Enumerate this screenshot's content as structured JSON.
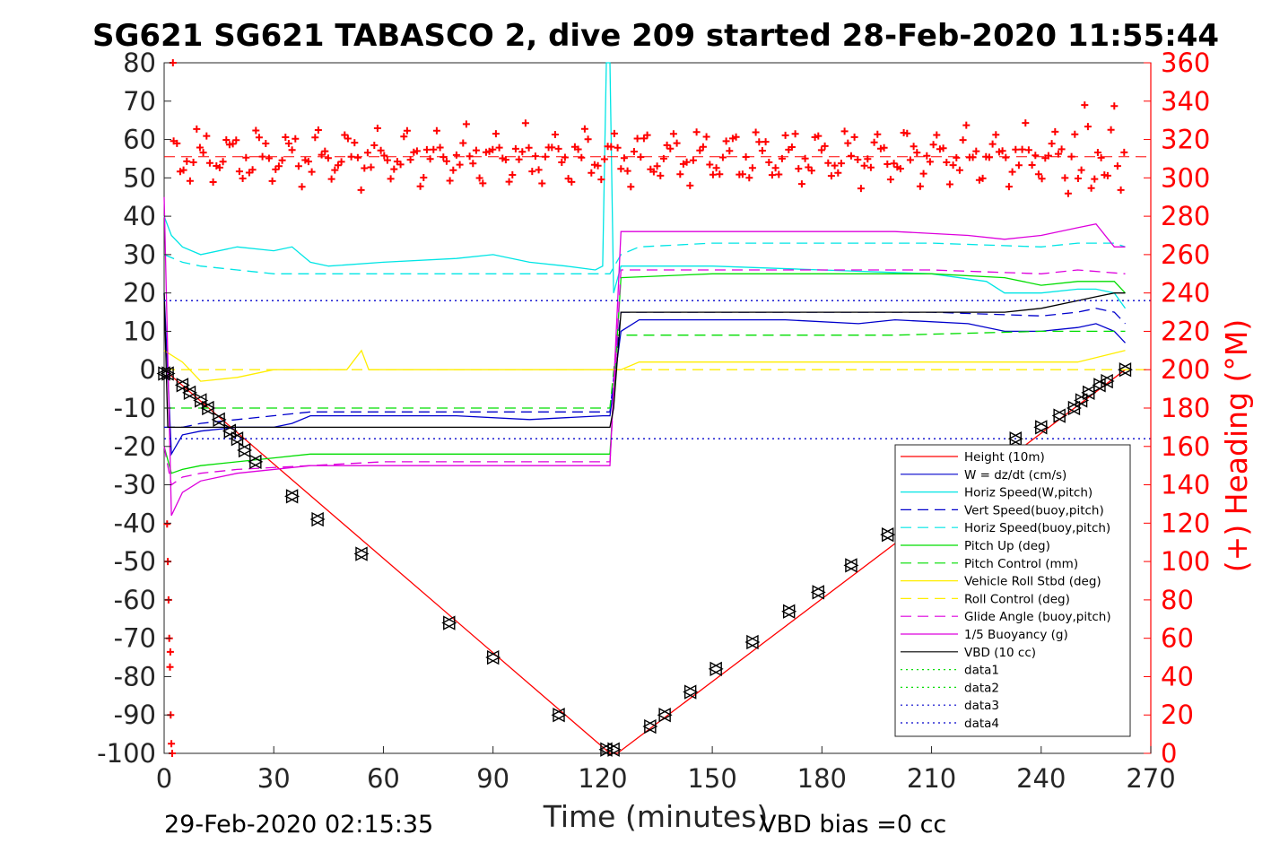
{
  "chart_data": {
    "type": "line",
    "title": "SG621 SG621 TABASCO 2, dive 209 started 28-Feb-2020 11:55:44",
    "xlabel": "Time (minutes)",
    "ylabel_left": "",
    "ylabel_right": "(+) Heading (°M)",
    "xlim": [
      0,
      270
    ],
    "ylim_left": [
      -100,
      80
    ],
    "ylim_right": [
      0,
      360
    ],
    "x_ticks": [
      "0",
      "30",
      "60",
      "90",
      "120",
      "150",
      "180",
      "210",
      "240",
      "270"
    ],
    "y_ticks_left": [
      "80",
      "70",
      "60",
      "50",
      "40",
      "30",
      "20",
      "10",
      "0",
      "-10",
      "-20",
      "-30",
      "-40",
      "-50",
      "-60",
      "-70",
      "-80",
      "-90",
      "-100"
    ],
    "y_ticks_right": [
      "360",
      "340",
      "320",
      "300",
      "280",
      "260",
      "240",
      "220",
      "200",
      "180",
      "160",
      "140",
      "120",
      "100",
      "80",
      "60",
      "40",
      "20",
      "0"
    ],
    "grid": false,
    "legend_position": "bottom-right",
    "footer_left": "29-Feb-2020 02:15:35",
    "footer_right": "VBD bias =0 cc",
    "heading_mean": 311,
    "series": [
      {
        "name": "Height (10m)",
        "color": "#ff0000",
        "style": "solid",
        "x": [
          0,
          122,
          124,
          263
        ],
        "y": [
          0,
          -100,
          -100,
          0
        ]
      },
      {
        "name": "W = dz/dt (cm/s)",
        "color": "#0000cc",
        "style": "solid",
        "x": [
          0,
          2,
          5,
          10,
          20,
          30,
          35,
          40,
          50,
          60,
          80,
          100,
          120,
          122,
          125,
          130,
          150,
          170,
          190,
          200,
          220,
          230,
          240,
          250,
          255,
          260,
          263
        ],
        "y": [
          20,
          -22,
          -17,
          -16,
          -15,
          -15,
          -14,
          -12,
          -12,
          -12,
          -12,
          -13,
          -12,
          -12,
          10,
          13,
          13,
          13,
          12,
          13,
          12,
          10,
          10,
          11,
          12,
          10,
          7
        ]
      },
      {
        "name": "Horiz Speed(W,pitch)",
        "color": "#00e5e5",
        "style": "solid",
        "x": [
          0,
          2,
          5,
          10,
          20,
          30,
          35,
          40,
          45,
          60,
          80,
          90,
          100,
          110,
          118,
          120,
          121,
          122,
          123,
          125,
          130,
          150,
          180,
          210,
          225,
          230,
          240,
          250,
          255,
          260,
          263
        ],
        "y": [
          40,
          35,
          32,
          30,
          32,
          31,
          32,
          28,
          27,
          28,
          29,
          30,
          28,
          27,
          26,
          27,
          80,
          80,
          20,
          27,
          27,
          27,
          26,
          25,
          23,
          20,
          20,
          21,
          21,
          20,
          16
        ]
      },
      {
        "name": "Vert Speed(buoy,pitch)",
        "color": "#0000cc",
        "style": "dashed",
        "x": [
          0,
          5,
          10,
          20,
          40,
          60,
          90,
          120,
          122,
          125,
          150,
          180,
          210,
          240,
          250,
          255,
          260,
          263
        ],
        "y": [
          -15,
          -15,
          -14,
          -13,
          -11,
          -11,
          -11,
          -11,
          -11,
          15,
          15,
          15,
          15,
          14,
          15,
          16,
          15,
          12
        ]
      },
      {
        "name": "Horiz Speed(buoy,pitch)",
        "color": "#00e5e5",
        "style": "dashed",
        "x": [
          0,
          5,
          10,
          20,
          30,
          40,
          60,
          90,
          120,
          122,
          125,
          130,
          150,
          180,
          210,
          240,
          250,
          260,
          263
        ],
        "y": [
          30,
          28,
          27,
          26,
          25,
          25,
          25,
          25,
          25,
          25,
          30,
          32,
          33,
          33,
          33,
          32,
          33,
          33,
          32
        ]
      },
      {
        "name": "Pitch Up (deg)",
        "color": "#00dd00",
        "style": "solid",
        "x": [
          0,
          2,
          5,
          10,
          20,
          30,
          40,
          60,
          90,
          120,
          122,
          125,
          150,
          180,
          210,
          230,
          240,
          250,
          260,
          263
        ],
        "y": [
          -20,
          -27,
          -26,
          -25,
          -24,
          -23,
          -22,
          -22,
          -22,
          -22,
          -22,
          24,
          25,
          25,
          25,
          24,
          22,
          23,
          23,
          20
        ]
      },
      {
        "name": "Pitch Control (mm)",
        "color": "#00dd00",
        "style": "dashed",
        "x": [
          0,
          5,
          60,
          120,
          122,
          124,
          150,
          200,
          240,
          263
        ],
        "y": [
          -10,
          -10,
          -10,
          -10,
          -10,
          9,
          9,
          9,
          10,
          10
        ]
      },
      {
        "name": "Vehicle Roll Stbd (deg)",
        "color": "#ffee00",
        "style": "solid",
        "x": [
          0,
          5,
          10,
          20,
          30,
          50,
          54,
          56,
          80,
          90,
          108,
          120,
          125,
          130,
          150,
          180,
          210,
          240,
          250,
          263
        ],
        "y": [
          5,
          2,
          -3,
          -2,
          0,
          0,
          5,
          0,
          0,
          0,
          0,
          0,
          0,
          2,
          2,
          2,
          2,
          2,
          2,
          5
        ]
      },
      {
        "name": "Roll Control (deg)",
        "color": "#ffee00",
        "style": "dashed",
        "x": [
          0,
          270
        ],
        "y": [
          0,
          0
        ]
      },
      {
        "name": "Glide Angle (buoy,pitch)",
        "color": "#dd00dd",
        "style": "dashed",
        "x": [
          0,
          2,
          5,
          10,
          20,
          40,
          60,
          90,
          120,
          122,
          125,
          150,
          180,
          210,
          240,
          250,
          263
        ],
        "y": [
          -20,
          -30,
          -28,
          -27,
          -26,
          -25,
          -24,
          -24,
          -24,
          -24,
          26,
          26,
          26,
          26,
          25,
          26,
          25
        ]
      },
      {
        "name": "1/5 Buoyancy (g)",
        "color": "#dd00dd",
        "style": "solid",
        "x": [
          0,
          2,
          5,
          10,
          20,
          40,
          60,
          90,
          120,
          122,
          125,
          130,
          150,
          180,
          200,
          220,
          230,
          240,
          250,
          255,
          260,
          263
        ],
        "y": [
          45,
          -38,
          -32,
          -29,
          -27,
          -25,
          -25,
          -25,
          -25,
          -25,
          36,
          36,
          36,
          36,
          36,
          35,
          34,
          35,
          37,
          38,
          32,
          32
        ]
      },
      {
        "name": "VBD (10 cc)",
        "color": "#000000",
        "style": "solid",
        "x": [
          0,
          1,
          2,
          122,
          123,
          125,
          230,
          240,
          250,
          255,
          260,
          263
        ],
        "y": [
          20,
          -15,
          -15,
          -15,
          -10,
          15,
          15,
          16,
          18,
          19,
          20,
          20
        ]
      },
      {
        "name": "data1",
        "color": "#00dd00",
        "style": "dotted",
        "x": [],
        "y": []
      },
      {
        "name": "data2",
        "color": "#00dd00",
        "style": "dotted",
        "x": [],
        "y": []
      },
      {
        "name": "data3",
        "color": "#0000cc",
        "style": "dotted",
        "x": [
          0,
          270
        ],
        "y": [
          18,
          18
        ]
      },
      {
        "name": "data4",
        "color": "#0000cc",
        "style": "dotted",
        "x": [
          0,
          270
        ],
        "y": [
          -18,
          -18
        ]
      }
    ],
    "depth_markers": {
      "x": [
        0,
        1,
        5,
        7,
        10,
        12,
        15,
        18,
        20,
        22,
        25,
        35,
        42,
        54,
        78,
        90,
        108,
        121,
        123,
        133,
        137,
        144,
        151,
        161,
        171,
        179,
        188,
        198,
        233,
        240,
        245,
        249,
        251,
        253,
        256,
        258,
        263
      ],
      "y": [
        -1,
        -1,
        -4,
        -6,
        -8,
        -10,
        -13,
        -16,
        -18,
        -21,
        -24,
        -33,
        -39,
        -48,
        -66,
        -75,
        -90,
        -99,
        -99,
        -93,
        -90,
        -84,
        -78,
        -71,
        -63,
        -58,
        -51,
        -43,
        -18,
        -15,
        -12,
        -10,
        -8,
        -6,
        -4,
        -3,
        0
      ]
    }
  }
}
